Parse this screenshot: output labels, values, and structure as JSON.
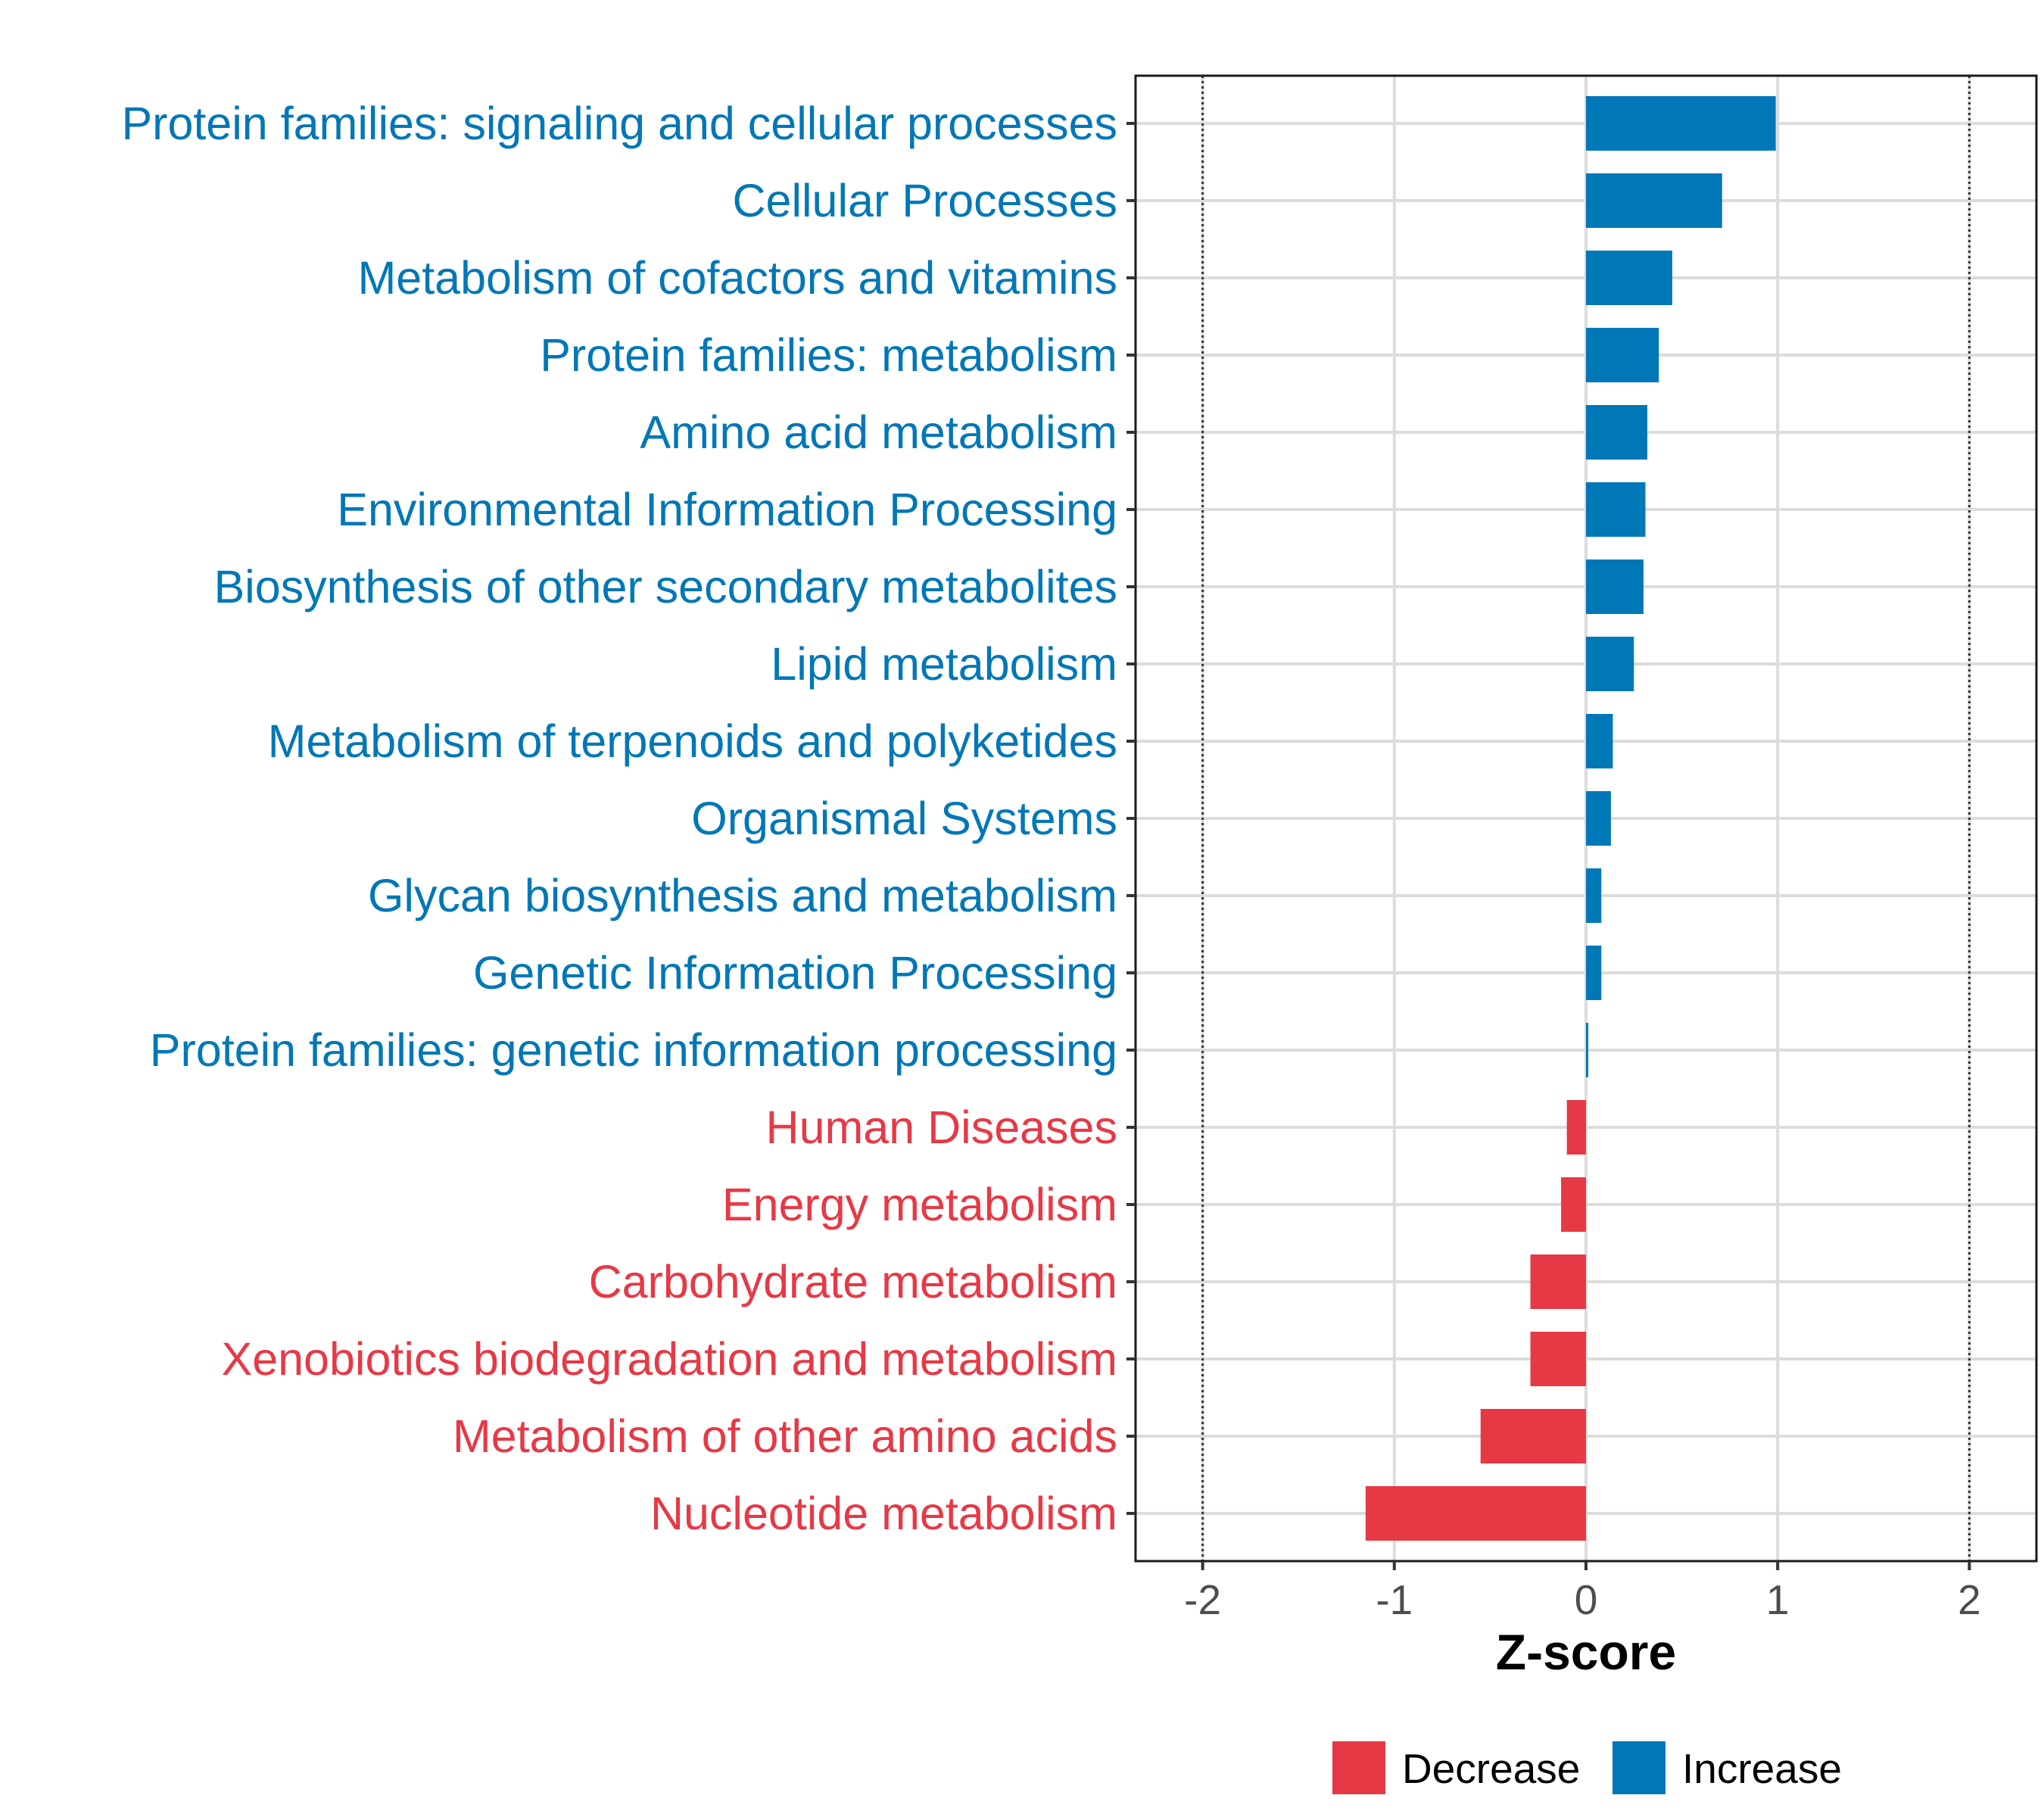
{
  "chart_data": {
    "type": "bar",
    "orientation": "horizontal",
    "title": "",
    "xlabel": "Z-score",
    "ylabel": "",
    "xlim": [
      -2.35,
      2.35
    ],
    "xticks": [
      -2,
      -1,
      0,
      1,
      2
    ],
    "xtick_labels": [
      "-2",
      "-1",
      "0",
      "1",
      "2"
    ],
    "reference_lines": [
      -2,
      2
    ],
    "grid": true,
    "legend_position": "bottom",
    "colors": {
      "Decrease": "#e63946",
      "Increase": "#0077b6"
    },
    "legend": [
      {
        "name": "Decrease",
        "color": "#e63946"
      },
      {
        "name": "Increase",
        "color": "#0077b6"
      }
    ],
    "categories": [
      "Protein families: signaling and cellular processes",
      "Cellular Processes",
      "Metabolism of cofactors and vitamins",
      "Protein families: metabolism",
      "Amino acid metabolism",
      "Environmental Information Processing",
      "Biosynthesis of other secondary metabolites",
      "Lipid metabolism",
      "Metabolism of terpenoids and polyketides",
      "Organismal Systems",
      "Glycan biosynthesis and metabolism",
      "Genetic Information Processing",
      "Protein families: genetic information processing",
      "Human Diseases",
      "Energy metabolism",
      "Carbohydrate metabolism",
      "Xenobiotics biodegradation and metabolism",
      "Metabolism of other amino acids",
      "Nucleotide metabolism"
    ],
    "values": [
      0.99,
      0.71,
      0.45,
      0.38,
      0.32,
      0.31,
      0.3,
      0.25,
      0.14,
      0.13,
      0.08,
      0.08,
      0.01,
      -0.1,
      -0.13,
      -0.29,
      -0.29,
      -0.55,
      -1.15
    ],
    "groups": [
      "Increase",
      "Increase",
      "Increase",
      "Increase",
      "Increase",
      "Increase",
      "Increase",
      "Increase",
      "Increase",
      "Increase",
      "Increase",
      "Increase",
      "Increase",
      "Decrease",
      "Decrease",
      "Decrease",
      "Decrease",
      "Decrease",
      "Decrease"
    ]
  }
}
